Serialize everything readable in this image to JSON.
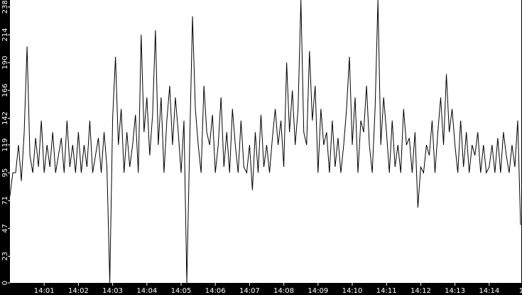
{
  "chart_data": {
    "type": "line",
    "title": "",
    "xlabel": "",
    "ylabel": "",
    "ylim": [
      0,
      244
    ],
    "grid": false,
    "legend": "none",
    "colors": {
      "background": "#000000",
      "plot": "#ffffff",
      "line": "#000000",
      "text": "#ffffff"
    },
    "y_ticks": [
      "0",
      "23",
      "47",
      "71",
      "95",
      "119",
      "142",
      "166",
      "190",
      "214",
      "238"
    ],
    "x_ticks": [
      "14:01",
      "14:02",
      "14:03",
      "14:04",
      "14:05",
      "14:06",
      "14:07",
      "14:08",
      "14:09",
      "14:10",
      "14:11",
      "14:12",
      "14:13",
      "14:14",
      "14"
    ],
    "x_start": "14:00:00",
    "x_interval_s": 5,
    "series": [
      {
        "values": [
          75,
          95,
          95,
          119,
          88,
          130,
          204,
          110,
          95,
          125,
          100,
          140,
          95,
          119,
          100,
          130,
          95,
          110,
          125,
          95,
          140,
          100,
          119,
          95,
          130,
          95,
          119,
          100,
          140,
          95,
          110,
          125,
          95,
          130,
          100,
          0,
          142,
          195,
          119,
          150,
          95,
          130,
          100,
          119,
          145,
          95,
          214,
          130,
          160,
          110,
          145,
          218,
          119,
          160,
          95,
          140,
          170,
          119,
          160,
          130,
          95,
          140,
          0,
          119,
          230,
          150,
          119,
          95,
          170,
          130,
          119,
          145,
          95,
          119,
          160,
          100,
          130,
          95,
          150,
          119,
          95,
          140,
          100,
          95,
          119,
          80,
          130,
          95,
          145,
          100,
          119,
          95,
          125,
          150,
          119,
          140,
          100,
          190,
          130,
          166,
          119,
          150,
          244,
          130,
          119,
          200,
          140,
          170,
          95,
          150,
          119,
          130,
          95,
          140,
          100,
          125,
          95,
          119,
          150,
          195,
          119,
          160,
          95,
          140,
          130,
          170,
          119,
          95,
          150,
          244,
          119,
          160,
          130,
          95,
          140,
          100,
          119,
          95,
          150,
          119,
          125,
          95,
          130,
          65,
          100,
          95,
          119,
          110,
          140,
          95,
          130,
          160,
          119,
          180,
          130,
          150,
          119,
          95,
          140,
          100,
          130,
          95,
          119,
          110,
          130,
          95,
          119,
          95,
          100,
          119,
          95,
          125,
          95,
          130,
          110,
          95,
          119,
          100,
          140,
          50
        ]
      }
    ]
  }
}
